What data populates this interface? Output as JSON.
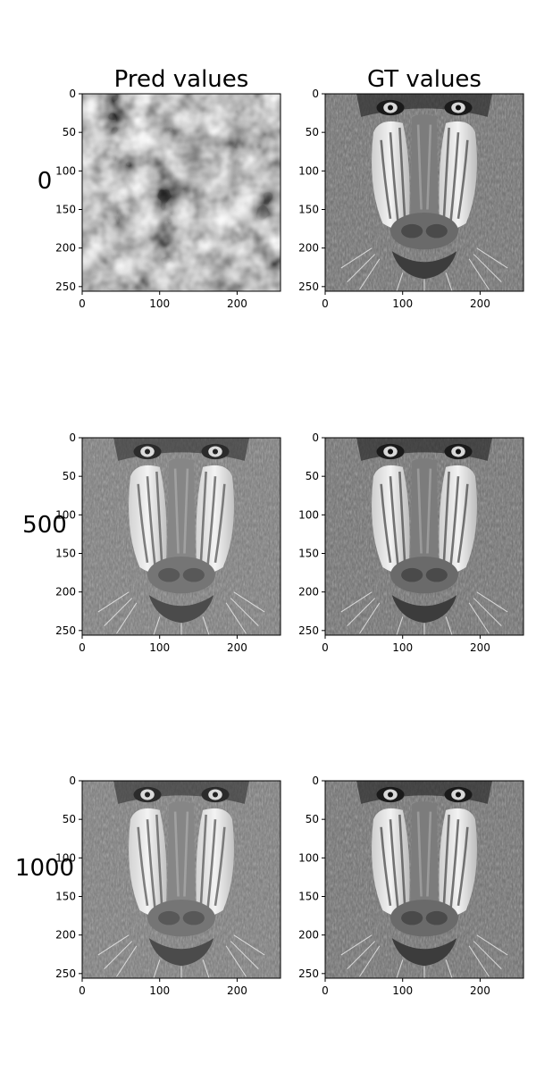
{
  "columns": [
    "Pred values",
    "GT values"
  ],
  "rows": [
    "0",
    "500",
    "1000"
  ],
  "chart_data": {
    "type": "heatmap",
    "colormap": "gray",
    "grid": false,
    "xlim": [
      0,
      256
    ],
    "ylim": [
      256,
      0
    ],
    "xticks": [
      "0",
      "100",
      "200"
    ],
    "yticks": [
      "0",
      "50",
      "100",
      "150",
      "200",
      "250"
    ],
    "xtick_values": [
      0,
      100,
      200
    ],
    "ytick_values": [
      0,
      50,
      100,
      150,
      200,
      250
    ],
    "panels": [
      {
        "row": "0",
        "column": "Pred values",
        "content": "noise"
      },
      {
        "row": "0",
        "column": "GT values",
        "content": "baboon"
      },
      {
        "row": "500",
        "column": "Pred values",
        "content": "baboon"
      },
      {
        "row": "500",
        "column": "GT values",
        "content": "baboon"
      },
      {
        "row": "1000",
        "column": "Pred values",
        "content": "baboon"
      },
      {
        "row": "1000",
        "column": "GT values",
        "content": "baboon"
      }
    ]
  }
}
